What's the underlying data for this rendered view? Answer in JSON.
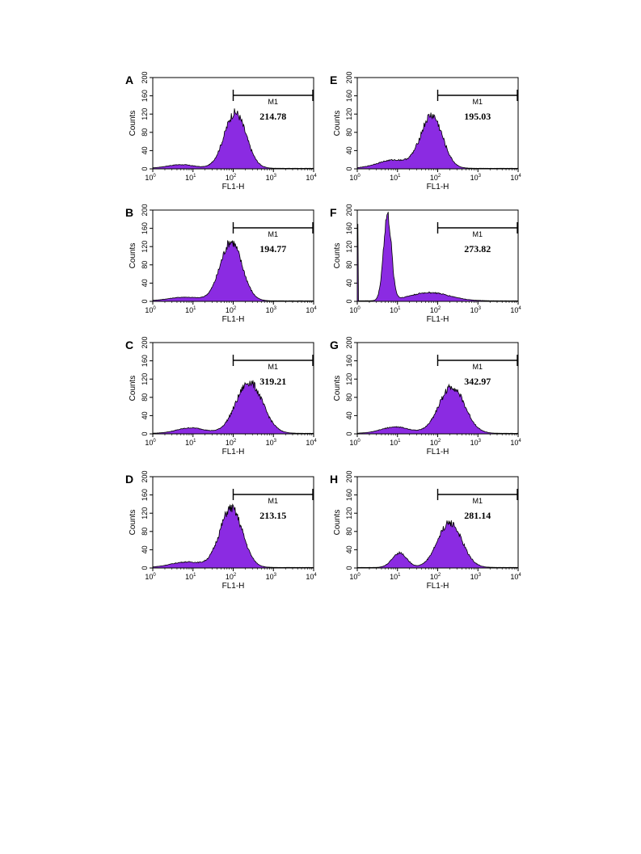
{
  "figure": {
    "xlabel": "FL1-H",
    "ylabel": "Counts",
    "gate_name": "M1",
    "fill_color": "#8b2be2",
    "outline_color": "#000000"
  },
  "chart_data": [
    {
      "panel": "A",
      "type": "area",
      "xlabel": "FL1-H",
      "ylabel": "Counts",
      "xscale": "log",
      "xlim": [
        1,
        10000
      ],
      "ylim": [
        0,
        200
      ],
      "xticks": [
        "10^0",
        "10^1",
        "10^2",
        "10^3",
        "10^4"
      ],
      "yticks": [
        0,
        40,
        80,
        120,
        160,
        200
      ],
      "gate": {
        "label": "M1",
        "range": [
          100,
          10000
        ]
      },
      "value_label": "214.78",
      "peaks": [
        {
          "center_log": 0.7,
          "width_log": 0.35,
          "height": 8
        },
        {
          "center_log": 2.05,
          "width_log": 0.27,
          "height": 122
        }
      ]
    },
    {
      "panel": "B",
      "type": "area",
      "xlabel": "FL1-H",
      "ylabel": "Counts",
      "xscale": "log",
      "xlim": [
        1,
        10000
      ],
      "ylim": [
        0,
        200
      ],
      "xticks": [
        "10^0",
        "10^1",
        "10^2",
        "10^3",
        "10^4"
      ],
      "yticks": [
        0,
        40,
        80,
        120,
        160,
        200
      ],
      "gate": {
        "label": "M1",
        "range": [
          100,
          10000
        ]
      },
      "value_label": "194.77",
      "peaks": [
        {
          "center_log": 0.8,
          "width_log": 0.4,
          "height": 8
        },
        {
          "center_log": 1.95,
          "width_log": 0.27,
          "height": 130
        }
      ]
    },
    {
      "panel": "C",
      "type": "area",
      "xlabel": "FL1-H",
      "ylabel": "Counts",
      "xscale": "log",
      "xlim": [
        1,
        10000
      ],
      "ylim": [
        0,
        200
      ],
      "xticks": [
        "10^0",
        "10^1",
        "10^2",
        "10^3",
        "10^4"
      ],
      "yticks": [
        0,
        40,
        80,
        120,
        160,
        200
      ],
      "gate": {
        "label": "M1",
        "range": [
          100,
          10000
        ]
      },
      "value_label": "319.21",
      "peaks": [
        {
          "center_log": 0.95,
          "width_log": 0.35,
          "height": 12
        },
        {
          "center_log": 2.4,
          "width_log": 0.33,
          "height": 112
        }
      ]
    },
    {
      "panel": "D",
      "type": "area",
      "xlabel": "FL1-H",
      "ylabel": "Counts",
      "xscale": "log",
      "xlim": [
        1,
        10000
      ],
      "ylim": [
        0,
        200
      ],
      "xticks": [
        "10^0",
        "10^1",
        "10^2",
        "10^3",
        "10^4"
      ],
      "yticks": [
        0,
        40,
        80,
        120,
        160,
        200
      ],
      "gate": {
        "label": "M1",
        "range": [
          100,
          10000
        ]
      },
      "value_label": "213.15",
      "peaks": [
        {
          "center_log": 0.85,
          "width_log": 0.4,
          "height": 12
        },
        {
          "center_log": 1.95,
          "width_log": 0.28,
          "height": 130
        }
      ]
    },
    {
      "panel": "E",
      "type": "area",
      "xlabel": "FL1-H",
      "ylabel": "Counts",
      "xscale": "log",
      "xlim": [
        1,
        10000
      ],
      "ylim": [
        0,
        200
      ],
      "xticks": [
        "10^0",
        "10^1",
        "10^2",
        "10^3",
        "10^4"
      ],
      "yticks": [
        0,
        40,
        80,
        120,
        160,
        200
      ],
      "gate": {
        "label": "M1",
        "range": [
          100,
          10000
        ]
      },
      "value_label": "195.03",
      "peaks": [
        {
          "center_log": 0.9,
          "width_log": 0.4,
          "height": 18
        },
        {
          "center_log": 1.85,
          "width_log": 0.27,
          "height": 115
        }
      ]
    },
    {
      "panel": "F",
      "type": "area",
      "xlabel": "FL1-H",
      "ylabel": "Counts",
      "xscale": "log",
      "xlim": [
        1,
        10000
      ],
      "ylim": [
        0,
        200
      ],
      "xticks": [
        "10^0",
        "10^1",
        "10^2",
        "10^3",
        "10^4"
      ],
      "yticks": [
        0,
        40,
        80,
        120,
        160,
        200
      ],
      "gate": {
        "label": "M1",
        "range": [
          100,
          10000
        ]
      },
      "value_label": "273.82",
      "edge_spike": 170,
      "peaks": [
        {
          "center_log": 0.75,
          "width_log": 0.1,
          "height": 185
        },
        {
          "center_log": 1.8,
          "width_log": 0.5,
          "height": 18
        }
      ]
    },
    {
      "panel": "G",
      "type": "area",
      "xlabel": "FL1-H",
      "ylabel": "Counts",
      "xscale": "log",
      "xlim": [
        1,
        10000
      ],
      "ylim": [
        0,
        200
      ],
      "xticks": [
        "10^0",
        "10^1",
        "10^2",
        "10^3",
        "10^4"
      ],
      "yticks": [
        0,
        40,
        80,
        120,
        160,
        200
      ],
      "gate": {
        "label": "M1",
        "range": [
          100,
          10000
        ]
      },
      "value_label": "342.97",
      "peaks": [
        {
          "center_log": 0.95,
          "width_log": 0.35,
          "height": 14
        },
        {
          "center_log": 2.35,
          "width_log": 0.32,
          "height": 102
        }
      ]
    },
    {
      "panel": "H",
      "type": "area",
      "xlabel": "FL1-H",
      "ylabel": "Counts",
      "xscale": "log",
      "xlim": [
        1,
        10000
      ],
      "ylim": [
        0,
        200
      ],
      "xticks": [
        "10^0",
        "10^1",
        "10^2",
        "10^3",
        "10^4"
      ],
      "yticks": [
        0,
        40,
        80,
        120,
        160,
        200
      ],
      "gate": {
        "label": "M1",
        "range": [
          100,
          10000
        ]
      },
      "value_label": "281.14",
      "peaks": [
        {
          "center_log": 1.05,
          "width_log": 0.18,
          "height": 32
        },
        {
          "center_log": 2.3,
          "width_log": 0.3,
          "height": 98
        }
      ]
    }
  ]
}
